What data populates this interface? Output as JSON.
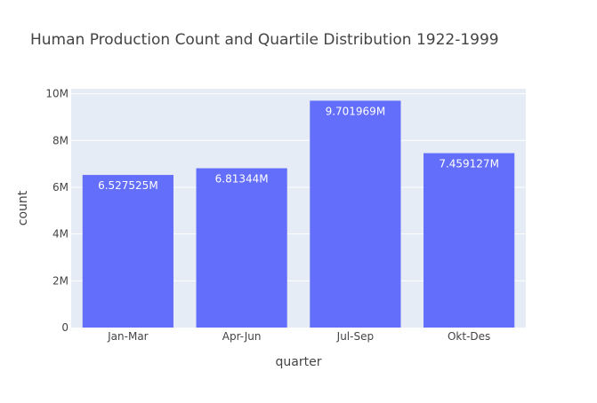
{
  "chart_data": {
    "type": "bar",
    "title": "Human Production Count and Quartile Distribution 1922-1999",
    "xlabel": "quarter",
    "ylabel": "count",
    "categories": [
      "Jan-Mar",
      "Apr-Jun",
      "Jul-Sep",
      "Okt-Des"
    ],
    "values": [
      6527525,
      6813440,
      9701969,
      7459127
    ],
    "value_labels": [
      "6.527525M",
      "6.81344M",
      "9.701969M",
      "7.459127M"
    ],
    "ylim": [
      0,
      10212599
    ],
    "yticks": [
      0,
      2000000,
      4000000,
      6000000,
      8000000,
      10000000
    ],
    "ytick_labels": [
      "0",
      "2M",
      "4M",
      "6M",
      "8M",
      "10M"
    ],
    "grid": true,
    "colors": {
      "bar": "#636efa",
      "plot_bg": "#e5ecf6",
      "grid": "#ffffff",
      "text": "#444444",
      "bar_label": "#ffffff"
    }
  }
}
